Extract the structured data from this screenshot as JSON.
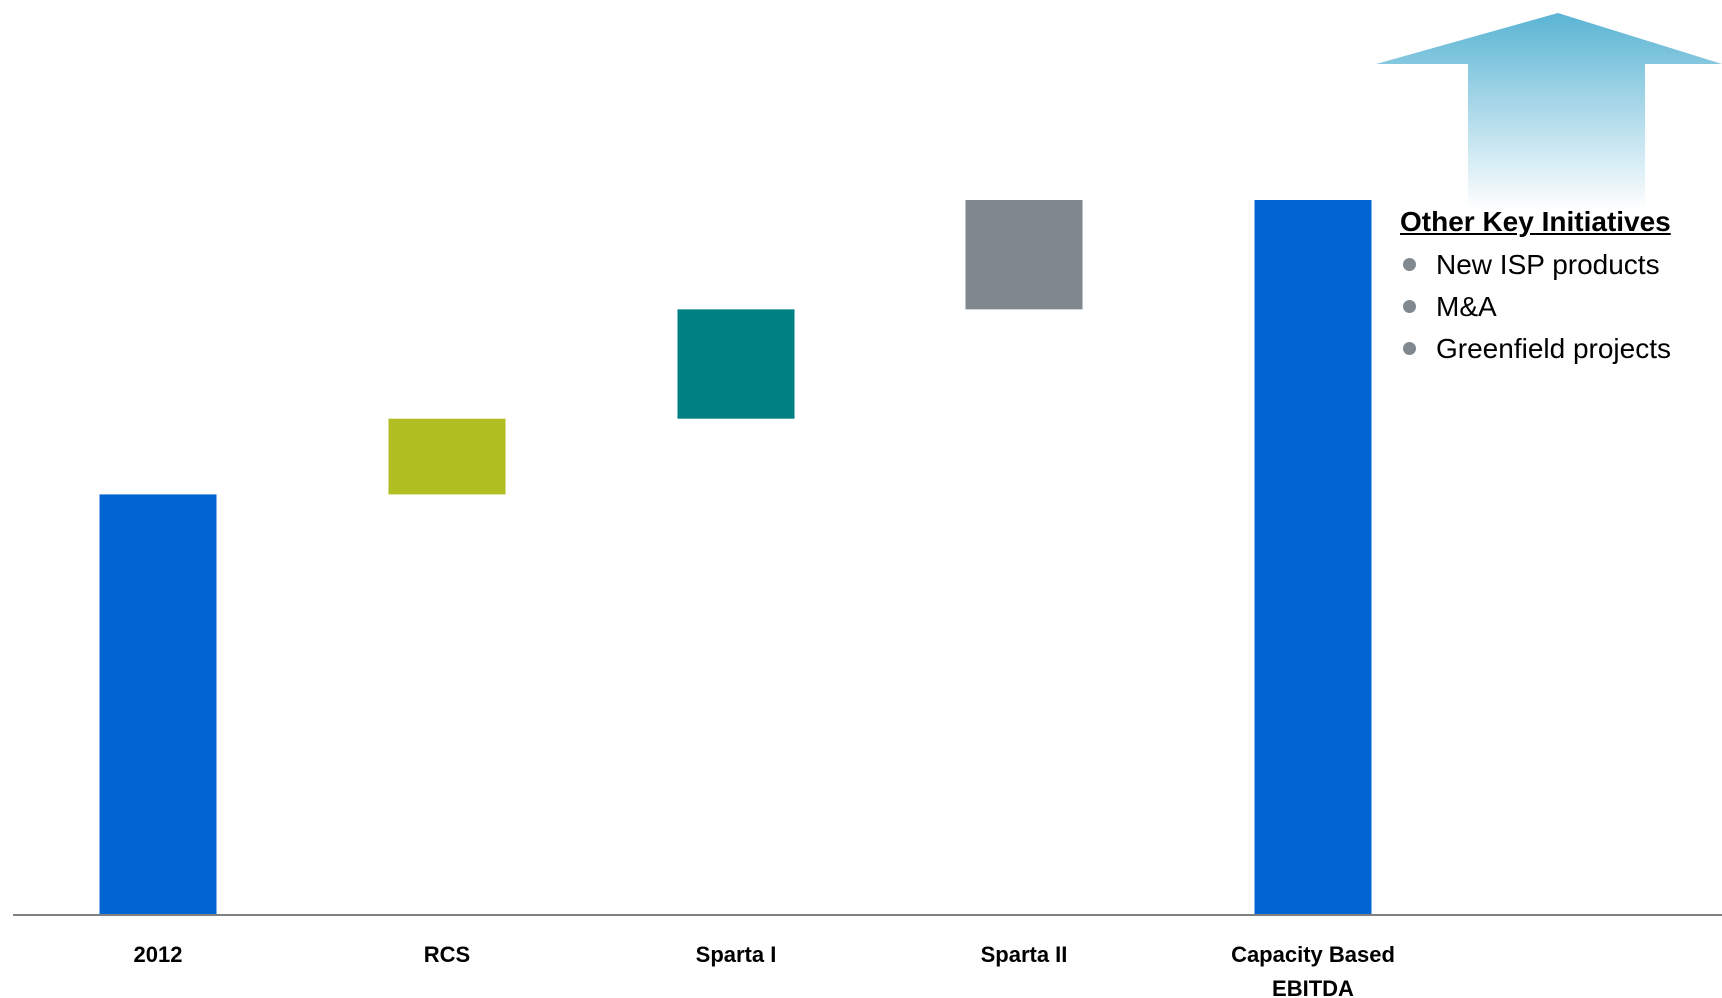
{
  "colors": {
    "total": "#0064D2",
    "rcs": "#B0BE22",
    "sparta_i": "#008080",
    "sparta_ii": "#80878D",
    "axis": "#808080",
    "arrow_top": "#5AB4D4",
    "bullet": "#808890"
  },
  "chart_data": {
    "type": "bar",
    "subtype": "waterfall",
    "categories": [
      "2012",
      "RCS",
      "Sparta I",
      "Sparta II",
      "Capacity Based\nEBITDA"
    ],
    "bars": [
      {
        "category": "2012",
        "kind": "total",
        "base": 0,
        "value": 100,
        "color_key": "total"
      },
      {
        "category": "RCS",
        "kind": "increment",
        "base": 100,
        "value": 18,
        "color_key": "rcs"
      },
      {
        "category": "Sparta I",
        "kind": "increment",
        "base": 118,
        "value": 26,
        "color_key": "sparta_i"
      },
      {
        "category": "Sparta II",
        "kind": "increment",
        "base": 144,
        "value": 26,
        "color_key": "sparta_ii"
      },
      {
        "category": "Capacity Based\nEBITDA",
        "kind": "total",
        "base": 0,
        "value": 170,
        "color_key": "total"
      }
    ],
    "ylim": [
      0,
      170
    ],
    "axis_labels_visible": false,
    "grid": false
  },
  "side_panel": {
    "title": "Other Key Initiatives",
    "items": [
      "New ISP products",
      "M&A",
      "Greenfield projects"
    ]
  },
  "decorations": {
    "up_arrow_icon": "up-arrow-icon"
  }
}
